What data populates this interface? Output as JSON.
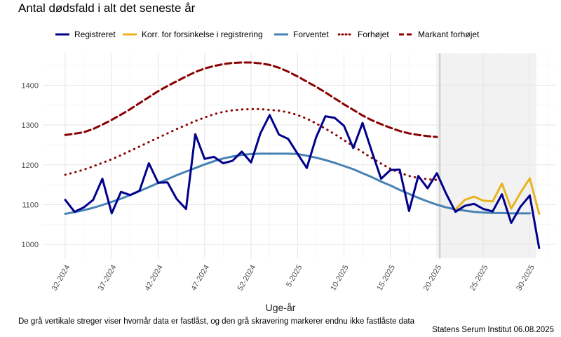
{
  "chart_data": {
    "type": "line",
    "title": "Antal dødsfald i alt det seneste år",
    "xlabel": "Uge-år",
    "ylabel": "",
    "caption": "De grå vertikale streger viser hvornår data er fastlåst, og den grå skravering markerer endnu ikke fastlåste data",
    "source": "Statens Serum Institut  06.08.2025",
    "ylim": [
      965,
      1480
    ],
    "yticks": [
      1000,
      1100,
      1200,
      1300,
      1400
    ],
    "week_index_range": [
      0,
      51
    ],
    "xticks": [
      {
        "i": 0,
        "label": "32-2024"
      },
      {
        "i": 5,
        "label": "37-2024"
      },
      {
        "i": 10,
        "label": "42-2024"
      },
      {
        "i": 15,
        "label": "47-2024"
      },
      {
        "i": 20,
        "label": "52-2024"
      },
      {
        "i": 25,
        "label": "5-2025"
      },
      {
        "i": 30,
        "label": "10-2025"
      },
      {
        "i": 35,
        "label": "15-2025"
      },
      {
        "i": 40,
        "label": "20-2025"
      },
      {
        "i": 45,
        "label": "25-2025"
      },
      {
        "i": 50,
        "label": "30-2025"
      }
    ],
    "locked_from_index": 40.3,
    "shaded_range": [
      40.3,
      50.7
    ],
    "grid": true,
    "legend_position": "top",
    "series": [
      {
        "name": "Registreret",
        "color": "#00008b",
        "dash": "solid",
        "x0": 0,
        "values": [
          1112,
          1082,
          1093,
          1112,
          1165,
          1078,
          1132,
          1124,
          1135,
          1204,
          1155,
          1156,
          1114,
          1089,
          1277,
          1215,
          1220,
          1204,
          1210,
          1233,
          1206,
          1279,
          1325,
          1276,
          1265,
          1228,
          1192,
          1269,
          1322,
          1318,
          1298,
          1242,
          1305,
          1233,
          1165,
          1187,
          1188,
          1084,
          1172,
          1141,
          1179,
          1127,
          1082,
          1097,
          1102,
          1089,
          1083,
          1126,
          1054,
          1095,
          1123,
          991
        ]
      },
      {
        "name": "Korr. for forsinkelse i registrering",
        "color": "#e8b520",
        "dash": "solid",
        "x0": 42,
        "values": [
          1088,
          1112,
          1120,
          1110,
          1108,
          1153,
          1090,
          1130,
          1166,
          1077
        ]
      },
      {
        "name": "Forventet",
        "color": "#4682b4",
        "dash": "solid",
        "x0": 0,
        "values": [
          1077,
          1081,
          1086,
          1092,
          1099,
          1107,
          1115,
          1124,
          1134,
          1144,
          1154,
          1164,
          1174,
          1183,
          1192,
          1201,
          1209,
          1216,
          1221,
          1225,
          1227,
          1228,
          1228,
          1228,
          1228,
          1227,
          1223,
          1218,
          1212,
          1205,
          1197,
          1189,
          1179,
          1169,
          1158,
          1148,
          1137,
          1127,
          1117,
          1108,
          1100,
          1093,
          1088,
          1085,
          1082,
          1080,
          1079,
          1079,
          1078,
          1078,
          1078
        ]
      },
      {
        "name": "Forhøjet",
        "color": "#8b0000",
        "dash": "dotted",
        "x0": 0,
        "values": [
          1175,
          1181,
          1188,
          1196,
          1205,
          1214,
          1224,
          1235,
          1246,
          1257,
          1268,
          1279,
          1290,
          1300,
          1310,
          1319,
          1327,
          1333,
          1337,
          1339,
          1340,
          1340,
          1338,
          1336,
          1332,
          1325,
          1316,
          1304,
          1291,
          1277,
          1262,
          1247,
          1232,
          1217,
          1203,
          1190,
          1180,
          1172,
          1167,
          1164,
          1162
        ]
      },
      {
        "name": "Markant forhøjet",
        "color": "#8b0000",
        "dash": "dashed",
        "x0": 0,
        "values": [
          1275,
          1278,
          1282,
          1290,
          1301,
          1313,
          1326,
          1340,
          1355,
          1370,
          1385,
          1398,
          1410,
          1422,
          1433,
          1442,
          1448,
          1453,
          1456,
          1457,
          1457,
          1455,
          1451,
          1444,
          1434,
          1422,
          1409,
          1396,
          1382,
          1367,
          1352,
          1338,
          1324,
          1312,
          1302,
          1293,
          1285,
          1279,
          1275,
          1272,
          1270
        ]
      }
    ]
  }
}
